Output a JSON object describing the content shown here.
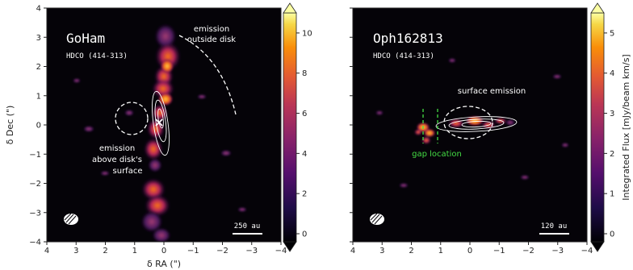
{
  "axes": {
    "xlabel": "δ RA (\")",
    "ylabel": "δ Dec (\")",
    "xticks": [
      "4",
      "3",
      "2",
      "1",
      "0",
      "−1",
      "−2",
      "−3",
      "−4"
    ],
    "yticks": [
      "4",
      "3",
      "2",
      "1",
      "0",
      "−1",
      "−2",
      "−3",
      "−4"
    ]
  },
  "panel_left": {
    "title": "GoHam",
    "line": "HDCO (414-313)",
    "annotation_outside": [
      "emission",
      "outside disk"
    ],
    "annotation_above": [
      "emission",
      "above disk's",
      "surface"
    ],
    "scalebar": "250 au",
    "colorbar_ticks": [
      "0",
      "2",
      "4",
      "6",
      "8",
      "10"
    ]
  },
  "panel_right": {
    "title": "Oph162813",
    "line": "HDCO (414-313)",
    "annotation_surface": "surface emission",
    "annotation_gap": "gap location",
    "scalebar": "120 au",
    "colorbar_ticks": [
      "0",
      "1",
      "2",
      "3",
      "4",
      "5"
    ],
    "colorbar_label": "Integrated Flux [mJy/beam km/s]"
  },
  "chart_data": [
    {
      "type": "heatmap",
      "title": "GoHam",
      "xlabel": "δ RA (\")",
      "ylabel": "δ Dec (\")",
      "xlim": [
        4,
        -4
      ],
      "ylim": [
        -4,
        4
      ],
      "colorbar_range": [
        0,
        11
      ],
      "colormap": "inferno"
    },
    {
      "type": "heatmap",
      "title": "Oph162813",
      "xlabel": "",
      "ylabel": "",
      "xlim": [
        4,
        -4
      ],
      "ylim": [
        -4,
        4
      ],
      "colorbar_range": [
        0,
        5.5
      ],
      "colormap": "inferno"
    }
  ],
  "colors": {
    "panel_bg": "#050308",
    "gap_marker": "#44dd44"
  }
}
